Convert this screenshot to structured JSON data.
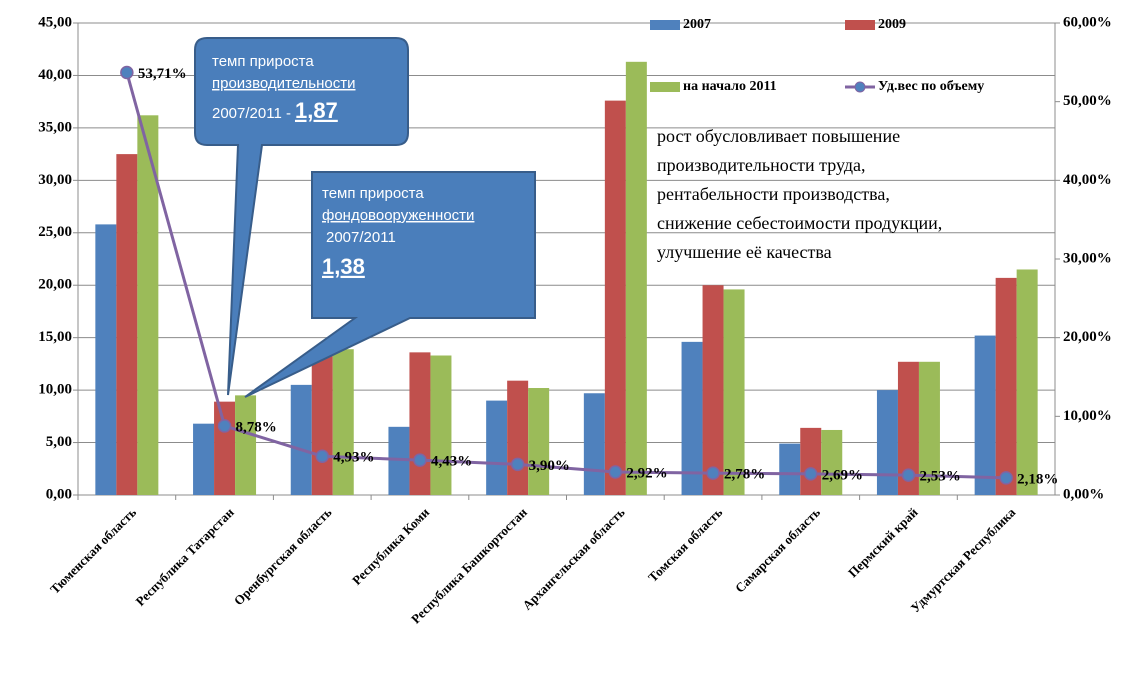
{
  "chart_data": {
    "type": "bar",
    "categories": [
      "Тюменская область",
      "Республика Татарстан",
      "Оренбургская область",
      "Республика Коми",
      "Республика Башкортостан",
      "Архангельская область",
      "Томская область",
      "Самарская область",
      "Пермский край",
      "Удмуртская Республика"
    ],
    "series": [
      {
        "name": "2007",
        "color": "#4f81bd",
        "values": [
          25.8,
          6.8,
          10.5,
          6.5,
          9.0,
          9.7,
          14.6,
          4.9,
          10.0,
          15.2
        ]
      },
      {
        "name": "2009",
        "color": "#c0504d",
        "values": [
          32.5,
          8.9,
          13.7,
          13.6,
          10.9,
          37.6,
          20.0,
          6.4,
          12.7,
          20.7
        ]
      },
      {
        "name": "на начало 2011",
        "color": "#9bbb59",
        "values": [
          36.2,
          9.5,
          13.9,
          13.3,
          10.2,
          41.3,
          19.6,
          6.2,
          12.7,
          21.5
        ]
      },
      {
        "name": "Уд.вес по объему",
        "color": "#8064a2",
        "type": "line",
        "axis": "y2",
        "values": [
          53.71,
          8.78,
          4.93,
          4.43,
          3.9,
          2.92,
          2.78,
          2.69,
          2.53,
          2.18
        ],
        "value_labels": [
          "53,71%",
          "8,78%",
          "4,93%",
          "4,43%",
          "3,90%",
          "2,92%",
          "2,78%",
          "2,69%",
          "2,53%",
          "2,18%"
        ]
      }
    ],
    "ylim": [
      0,
      45
    ],
    "yticks": [
      {
        "value": 0,
        "label": "0,00"
      },
      {
        "value": 5,
        "label": "5,00"
      },
      {
        "value": 10,
        "label": "10,00"
      },
      {
        "value": 15,
        "label": "15,00"
      },
      {
        "value": 20,
        "label": "20,00"
      },
      {
        "value": 25,
        "label": "25,00"
      },
      {
        "value": 30,
        "label": "30,00"
      },
      {
        "value": 35,
        "label": "35,00"
      },
      {
        "value": 40,
        "label": "40,00"
      },
      {
        "value": 45,
        "label": "45,00"
      }
    ],
    "y2lim": [
      0,
      60
    ],
    "y2ticks": [
      {
        "value": 0,
        "label": "0,00%"
      },
      {
        "value": 10,
        "label": "10,00%"
      },
      {
        "value": 20,
        "label": "20,00%"
      },
      {
        "value": 30,
        "label": "30,00%"
      },
      {
        "value": 40,
        "label": "40,00%"
      },
      {
        "value": 50,
        "label": "50,00%"
      },
      {
        "value": 60,
        "label": "60,00%"
      }
    ],
    "grid": true,
    "callouts": [
      {
        "title": "темп прироста",
        "subject": "производительности",
        "period": "2007/2011 - ",
        "value": "1,87"
      },
      {
        "title": "темп прироста",
        "subject": "фондовооруженности",
        "period": "2007/2011",
        "value": "1,38"
      }
    ],
    "note": [
      "рост обусловливает  повышение",
      "производительности труда,",
      "рентабельности производства,",
      "снижение себестоимости продукции,",
      "улучшение её качества"
    ]
  }
}
